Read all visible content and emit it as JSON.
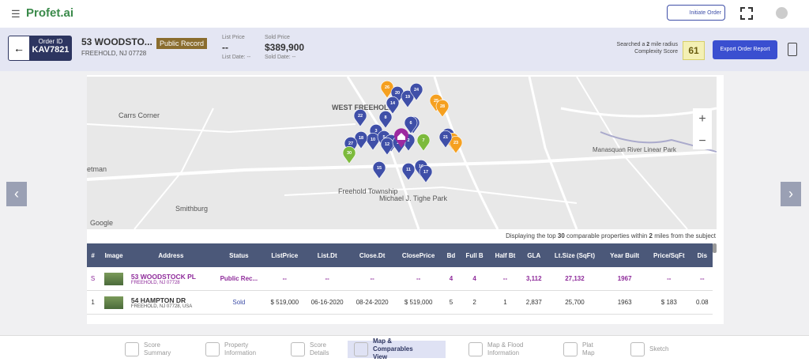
{
  "header": {
    "logo": "Profet.ai",
    "initiate_order": "Initiate Order"
  },
  "order": {
    "id_label": "Order ID",
    "id": "KAV7821",
    "address": "53 WOODSTO...",
    "city": "FREEHOLD, NJ 07728",
    "badge": "Public Record",
    "list_price_label": "List Price",
    "list_price": "--",
    "list_date": "List Date: --",
    "sold_price_label": "Sold Price",
    "sold_price": "$389,900",
    "sold_date": "Sold Date: --",
    "radius": [
      "Searched a ",
      "2",
      " mile radius"
    ],
    "complexity_label": "Complexity Score",
    "complexity_score": "61",
    "export": "Export Order Report"
  },
  "map": {
    "places": [
      "Carrs Corner",
      "WEST FREEHOLD",
      "Freehold Township",
      "Michael J. Tighe Park",
      "Manasquan River Linear Park",
      "Smithburg",
      "etman",
      "Google"
    ],
    "zoom_in": "+",
    "zoom_out": "−",
    "pins": [
      {
        "label": "26",
        "color": "#f5a020"
      },
      {
        "label": "20",
        "color": "#3f4fa8"
      },
      {
        "label": "19",
        "color": "#3f4fa8"
      },
      {
        "label": "24",
        "color": "#3f4fa8"
      },
      {
        "label": "14",
        "color": "#3f4fa8"
      },
      {
        "label": "25",
        "color": "#f5a020"
      },
      {
        "label": "28",
        "color": "#f5a020"
      },
      {
        "label": "22",
        "color": "#3f4fa8"
      },
      {
        "label": "8",
        "color": "#3f4fa8"
      },
      {
        "label": "9",
        "color": "#3f4fa8"
      },
      {
        "label": "3",
        "color": "#3f4fa8"
      },
      {
        "label": "10",
        "color": "#3f4fa8"
      },
      {
        "label": "5",
        "color": "#3f4fa8"
      },
      {
        "label": "18",
        "color": "#3f4fa8"
      },
      {
        "label": "27",
        "color": "#3f4fa8"
      },
      {
        "label": "1",
        "color": "#3f4fa8"
      },
      {
        "label": "2",
        "color": "#3f4fa8"
      },
      {
        "label": "7",
        "color": "#7cba3c"
      },
      {
        "label": "30",
        "color": "#7cba3c"
      },
      {
        "label": "4",
        "color": "#3f4fa8"
      },
      {
        "label": "29",
        "color": "#f5a020"
      },
      {
        "label": "23",
        "color": "#f5a020"
      },
      {
        "label": "15",
        "color": "#3f4fa8"
      },
      {
        "label": "11",
        "color": "#3f4fa8"
      },
      {
        "label": "16",
        "color": "#3f4fa8"
      },
      {
        "label": "17",
        "color": "#3f4fa8"
      },
      {
        "label": "12",
        "color": "#3f4fa8"
      },
      {
        "label": "13",
        "color": "#3f4fa8"
      },
      {
        "label": "21",
        "color": "#3f4fa8"
      },
      {
        "label": "6",
        "color": "#3f4fa8"
      }
    ]
  },
  "caption": [
    "Displaying the top ",
    "30",
    " comparable properties within ",
    "2",
    " miles from the subject"
  ],
  "table": {
    "columns": [
      "#",
      "Image",
      "Address",
      "Status",
      "ListPrice",
      "List.Dt",
      "Close.Dt",
      "ClosePrice",
      "Bd",
      "Full B",
      "Half Bt",
      "GLA",
      "Lt.Size (SqFt)",
      "Year Built",
      "Price/SqFt",
      "Dis"
    ],
    "rows": [
      [
        "S",
        "53 WOODSTOCK PL",
        "FREEHOLD, NJ 07728",
        "Public Rec...",
        "--",
        "--",
        "--",
        "--",
        "4",
        "4",
        "--",
        "3,112",
        "27,132",
        "1967",
        "--",
        "--"
      ],
      [
        "1",
        "54 HAMPTON DR",
        "FREEHOLD, NJ 07728, USA",
        "Sold",
        "$ 519,000",
        "06-16-2020",
        "08-24-2020",
        "$ 519,000",
        "5",
        "2",
        "1",
        "2,837",
        "25,700",
        "1963",
        "$ 183",
        "0.08"
      ]
    ]
  },
  "nav": {
    "items": [
      "Score Summary",
      "Property Information",
      "Score Details",
      "Map & Comparables View",
      "Map & Flood Information",
      "Plat Map",
      "Sketch"
    ],
    "active": 3
  }
}
